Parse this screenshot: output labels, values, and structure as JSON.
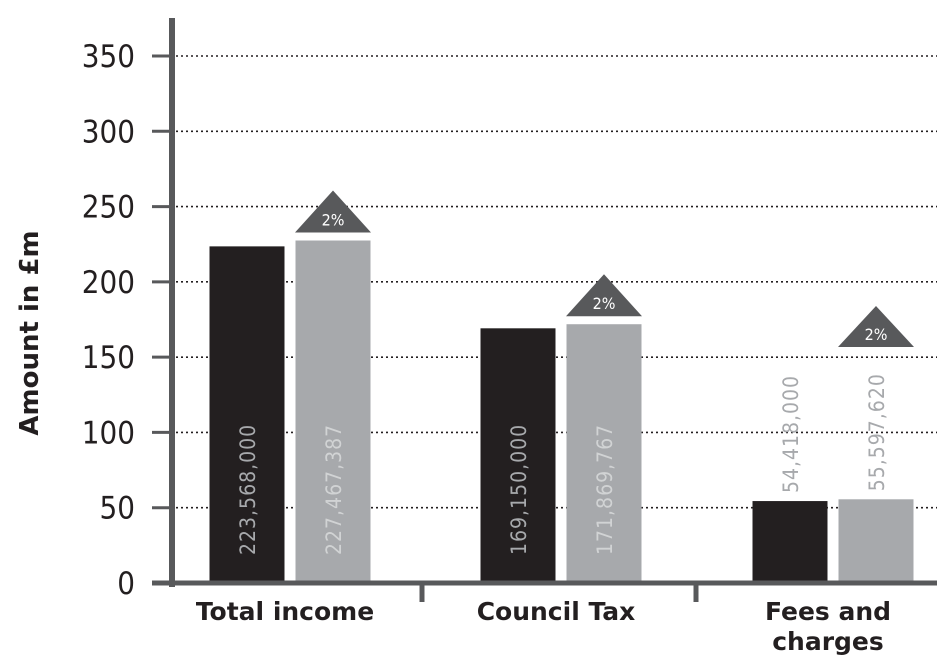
{
  "chart_data": {
    "type": "bar",
    "ylabel": "Amount in £m",
    "xlabel": "",
    "ylim": [
      0,
      350
    ],
    "yticks": [
      0,
      50,
      100,
      150,
      200,
      250,
      300,
      350
    ],
    "grid": true,
    "categories": [
      "Total income",
      "Council Tax",
      "Fees and charges"
    ],
    "category_lines": [
      [
        "Total income"
      ],
      [
        "Council Tax"
      ],
      [
        "Fees and",
        "charges"
      ]
    ],
    "series": [
      {
        "color": "#231f20",
        "values": [
          223.568,
          169.15,
          54.418
        ],
        "labels": [
          "223,568,000",
          "169,150,000",
          "54,418,000"
        ]
      },
      {
        "color": "#a7a9ac",
        "values": [
          227.467387,
          171.869767,
          55.59762
        ],
        "labels": [
          "227,467,387",
          "171,869,767",
          "55,597,620"
        ]
      }
    ],
    "change_labels": [
      "2%",
      "2%",
      "2%"
    ],
    "change_color": "#58595b"
  }
}
